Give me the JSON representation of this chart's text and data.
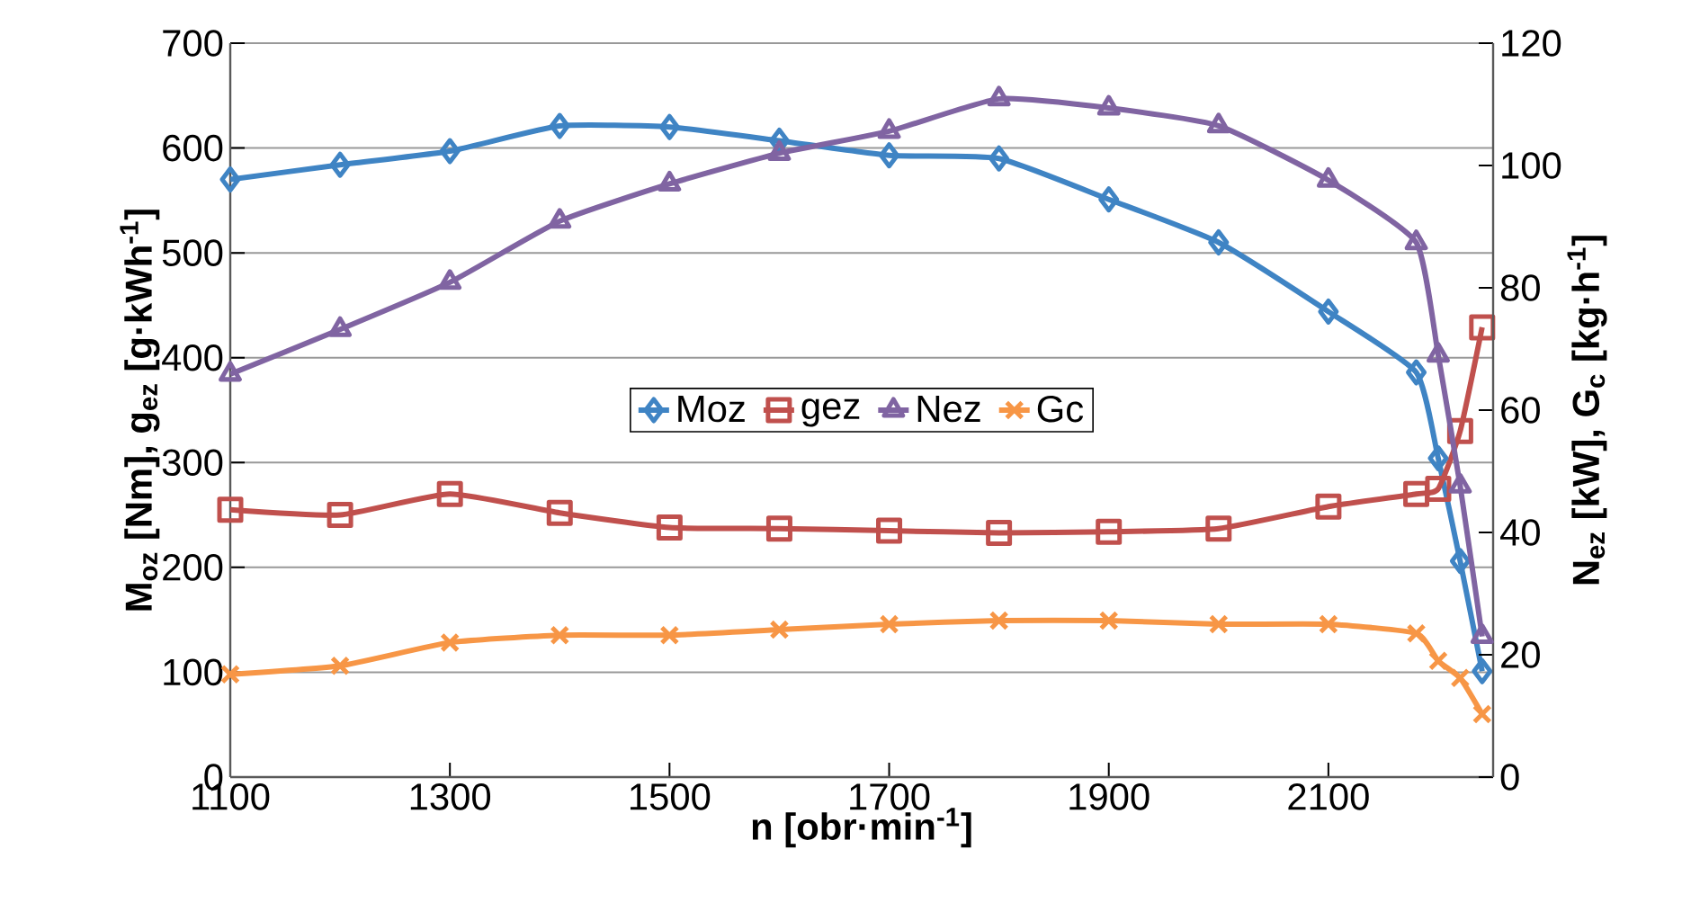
{
  "chart_data": {
    "type": "line",
    "xlabel": "n [obr·min$^{-1}$]",
    "ylabel": "M$_{oz}$ [Nm], g$_{ez}$ [g·kWh$^{-1}$]",
    "y2label": "N$_{ez}$ [kW], G$_{c}$ [kg·h$^{-1}$]",
    "x": [
      1100,
      1200,
      1300,
      1400,
      1500,
      1600,
      1700,
      1800,
      1900,
      2000,
      2100,
      2180,
      2200,
      2220,
      2240
    ],
    "series": [
      {
        "name": "Moz",
        "color": "#3f84c4",
        "marker": "diamond",
        "values": [
          570,
          584,
          597,
          621,
          620,
          607,
          593,
          590,
          551,
          510,
          444,
          386,
          304,
          206,
          101
        ]
      },
      {
        "name": "gez",
        "color": "#c0504d",
        "marker": "square",
        "values": [
          255,
          250,
          270,
          252,
          238,
          237,
          235,
          233,
          234,
          237,
          258,
          270,
          275,
          330,
          429
        ]
      },
      {
        "name": "Nez",
        "color": "#8064a2",
        "marker": "triangle",
        "axis": "y2",
        "values": [
          65.9,
          73.2,
          80.9,
          90.9,
          97,
          102,
          105.6,
          110.9,
          109.4,
          106.5,
          97.6,
          87.4,
          69,
          47.6,
          23
        ]
      },
      {
        "name": "Gc",
        "color": "#f79646",
        "marker": "cross",
        "axis": "y2",
        "values": [
          16.8,
          18.2,
          22,
          23.2,
          23.2,
          24.1,
          25,
          25.6,
          25.6,
          25,
          25,
          23.5,
          19,
          16.2,
          10.3
        ]
      }
    ],
    "xlim": [
      1100,
      2250
    ],
    "xticks": [
      1100,
      1300,
      1500,
      1700,
      1900,
      2100
    ],
    "ylim": [
      0,
      700
    ],
    "yticks": [
      0,
      100,
      200,
      300,
      400,
      500,
      600,
      700
    ],
    "y2lim": [
      0,
      120
    ],
    "y2ticks": [
      0,
      20,
      40,
      60,
      80,
      100,
      120
    ],
    "grid": "y",
    "legend": "center",
    "line_style": "solid"
  }
}
